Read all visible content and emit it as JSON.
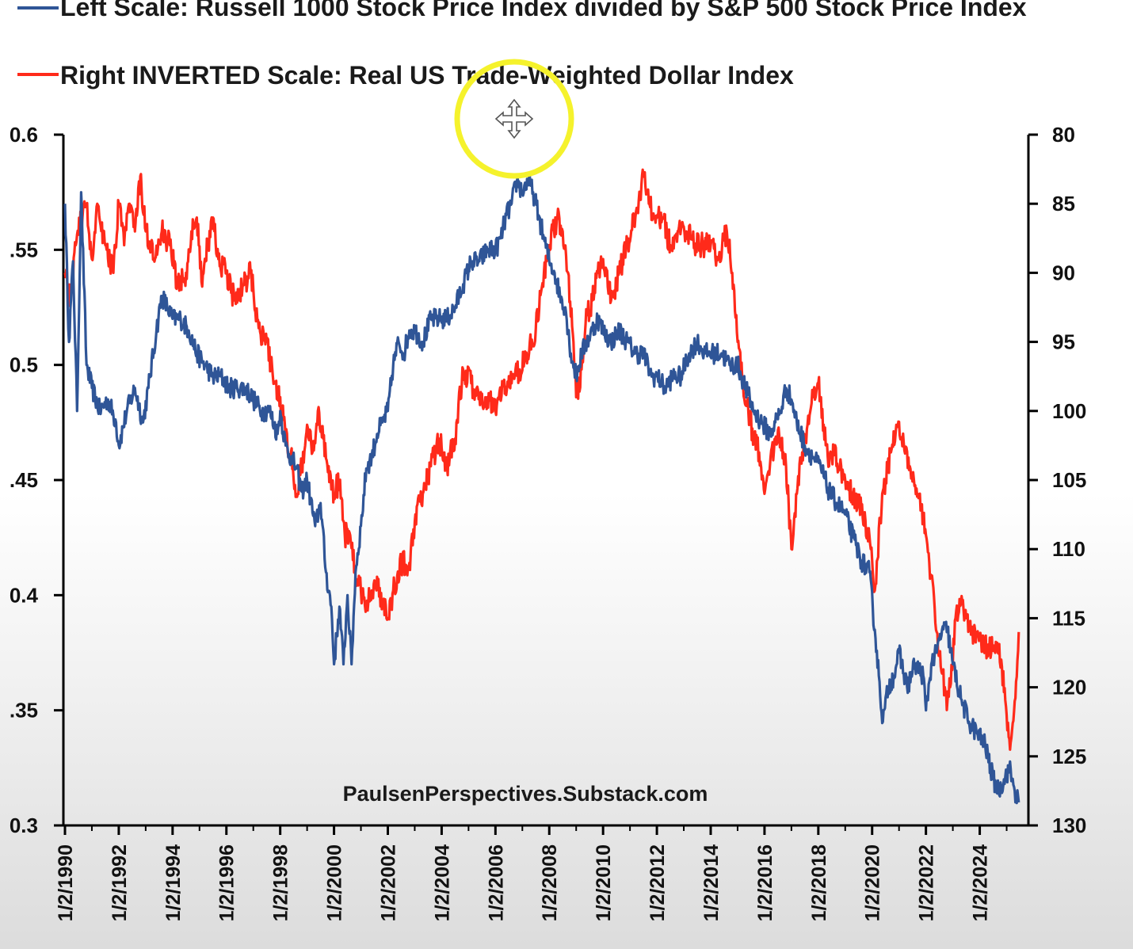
{
  "chart_data": {
    "type": "line",
    "watermark": "PaulsenPerspectives.Substack.com",
    "x_dates": [
      "1/2/1990",
      "1/2/1992",
      "1/2/1994",
      "1/2/1996",
      "1/2/1998",
      "1/2/2000",
      "1/2/2002",
      "1/2/2004",
      "1/2/2006",
      "1/2/2008",
      "1/2/2010",
      "1/2/2012",
      "1/2/2014",
      "1/2/2016",
      "1/2/2018",
      "1/2/2020",
      "1/2/2022",
      "1/2/2024"
    ],
    "left_axis": {
      "ticks": [
        0.6,
        0.55,
        0.5,
        0.45,
        0.4,
        0.35,
        0.3
      ],
      "labels": [
        "0.6",
        ".55",
        "0.5",
        ".45",
        "0.4",
        ".35",
        "0.3"
      ],
      "range": [
        0.3,
        0.6
      ]
    },
    "right_axis": {
      "inverted": true,
      "ticks": [
        80,
        85,
        90,
        95,
        100,
        105,
        110,
        115,
        120,
        125,
        130
      ],
      "range": [
        80,
        130
      ]
    },
    "series": [
      {
        "name": "Left Scale: Russell 1000 Stock Price Index divided by S&P 500 Stock Price Index",
        "color": "#2f5597",
        "axis": "left",
        "points": [
          [
            1990.0,
            0.57
          ],
          [
            1990.15,
            0.51
          ],
          [
            1990.3,
            0.545
          ],
          [
            1990.45,
            0.48
          ],
          [
            1990.6,
            0.575
          ],
          [
            1990.8,
            0.5
          ],
          [
            1991.0,
            0.49
          ],
          [
            1991.3,
            0.48
          ],
          [
            1991.6,
            0.485
          ],
          [
            1991.9,
            0.475
          ],
          [
            1992.0,
            0.465
          ],
          [
            1992.3,
            0.48
          ],
          [
            1992.6,
            0.49
          ],
          [
            1992.9,
            0.475
          ],
          [
            1993.1,
            0.49
          ],
          [
            1993.4,
            0.515
          ],
          [
            1993.6,
            0.53
          ],
          [
            1993.8,
            0.525
          ],
          [
            1994.0,
            0.52
          ],
          [
            1994.3,
            0.52
          ],
          [
            1994.6,
            0.515
          ],
          [
            1994.9,
            0.505
          ],
          [
            1995.2,
            0.5
          ],
          [
            1995.5,
            0.495
          ],
          [
            1995.8,
            0.495
          ],
          [
            1996.1,
            0.49
          ],
          [
            1996.4,
            0.49
          ],
          [
            1996.7,
            0.49
          ],
          [
            1997.0,
            0.485
          ],
          [
            1997.3,
            0.48
          ],
          [
            1997.6,
            0.48
          ],
          [
            1997.9,
            0.47
          ],
          [
            1998.0,
            0.48
          ],
          [
            1998.2,
            0.465
          ],
          [
            1998.4,
            0.46
          ],
          [
            1998.6,
            0.455
          ],
          [
            1998.8,
            0.445
          ],
          [
            1999.0,
            0.45
          ],
          [
            1999.3,
            0.43
          ],
          [
            1999.5,
            0.44
          ],
          [
            1999.7,
            0.41
          ],
          [
            1999.9,
            0.395
          ],
          [
            2000.0,
            0.37
          ],
          [
            2000.2,
            0.395
          ],
          [
            2000.35,
            0.37
          ],
          [
            2000.5,
            0.4
          ],
          [
            2000.65,
            0.37
          ],
          [
            2000.8,
            0.41
          ],
          [
            2001.0,
            0.43
          ],
          [
            2001.2,
            0.455
          ],
          [
            2001.4,
            0.46
          ],
          [
            2001.6,
            0.47
          ],
          [
            2001.8,
            0.475
          ],
          [
            2002.0,
            0.48
          ],
          [
            2002.2,
            0.5
          ],
          [
            2002.4,
            0.51
          ],
          [
            2002.6,
            0.505
          ],
          [
            2002.8,
            0.515
          ],
          [
            2003.0,
            0.515
          ],
          [
            2003.3,
            0.51
          ],
          [
            2003.6,
            0.52
          ],
          [
            2003.9,
            0.52
          ],
          [
            2004.2,
            0.52
          ],
          [
            2004.5,
            0.525
          ],
          [
            2004.8,
            0.535
          ],
          [
            2005.1,
            0.545
          ],
          [
            2005.4,
            0.545
          ],
          [
            2005.7,
            0.55
          ],
          [
            2006.0,
            0.55
          ],
          [
            2006.2,
            0.555
          ],
          [
            2006.4,
            0.565
          ],
          [
            2006.6,
            0.57
          ],
          [
            2006.8,
            0.58
          ],
          [
            2007.0,
            0.575
          ],
          [
            2007.2,
            0.58
          ],
          [
            2007.4,
            0.575
          ],
          [
            2007.6,
            0.565
          ],
          [
            2007.8,
            0.555
          ],
          [
            2008.0,
            0.545
          ],
          [
            2008.2,
            0.54
          ],
          [
            2008.4,
            0.53
          ],
          [
            2008.6,
            0.525
          ],
          [
            2008.8,
            0.505
          ],
          [
            2009.0,
            0.495
          ],
          [
            2009.2,
            0.505
          ],
          [
            2009.4,
            0.51
          ],
          [
            2009.6,
            0.515
          ],
          [
            2009.8,
            0.52
          ],
          [
            2010.0,
            0.515
          ],
          [
            2010.3,
            0.51
          ],
          [
            2010.6,
            0.515
          ],
          [
            2010.9,
            0.51
          ],
          [
            2011.2,
            0.505
          ],
          [
            2011.5,
            0.505
          ],
          [
            2011.8,
            0.495
          ],
          [
            2012.0,
            0.495
          ],
          [
            2012.3,
            0.49
          ],
          [
            2012.6,
            0.495
          ],
          [
            2012.9,
            0.495
          ],
          [
            2013.2,
            0.505
          ],
          [
            2013.5,
            0.51
          ],
          [
            2013.8,
            0.505
          ],
          [
            2014.1,
            0.505
          ],
          [
            2014.4,
            0.505
          ],
          [
            2014.7,
            0.5
          ],
          [
            2015.0,
            0.5
          ],
          [
            2015.3,
            0.49
          ],
          [
            2015.6,
            0.48
          ],
          [
            2015.9,
            0.475
          ],
          [
            2016.2,
            0.47
          ],
          [
            2016.4,
            0.475
          ],
          [
            2016.6,
            0.48
          ],
          [
            2016.8,
            0.49
          ],
          [
            2017.0,
            0.485
          ],
          [
            2017.2,
            0.475
          ],
          [
            2017.5,
            0.465
          ],
          [
            2017.8,
            0.46
          ],
          [
            2018.1,
            0.455
          ],
          [
            2018.4,
            0.445
          ],
          [
            2018.7,
            0.44
          ],
          [
            2019.0,
            0.435
          ],
          [
            2019.3,
            0.425
          ],
          [
            2019.6,
            0.415
          ],
          [
            2019.9,
            0.41
          ],
          [
            2020.1,
            0.385
          ],
          [
            2020.25,
            0.365
          ],
          [
            2020.4,
            0.345
          ],
          [
            2020.6,
            0.36
          ],
          [
            2020.8,
            0.365
          ],
          [
            2021.0,
            0.375
          ],
          [
            2021.3,
            0.36
          ],
          [
            2021.6,
            0.37
          ],
          [
            2021.9,
            0.365
          ],
          [
            2022.0,
            0.35
          ],
          [
            2022.2,
            0.37
          ],
          [
            2022.4,
            0.375
          ],
          [
            2022.6,
            0.385
          ],
          [
            2022.8,
            0.385
          ],
          [
            2023.0,
            0.37
          ],
          [
            2023.3,
            0.355
          ],
          [
            2023.6,
            0.345
          ],
          [
            2023.9,
            0.34
          ],
          [
            2024.2,
            0.335
          ],
          [
            2024.5,
            0.32
          ],
          [
            2024.7,
            0.315
          ],
          [
            2024.9,
            0.32
          ],
          [
            2025.1,
            0.325
          ],
          [
            2025.3,
            0.315
          ],
          [
            2025.45,
            0.31
          ]
        ]
      },
      {
        "name": "Right INVERTED Scale: Real US Trade-Weighted Dollar Index",
        "color": "#ff2a1a",
        "axis": "right",
        "points": [
          [
            1990.0,
            90
          ],
          [
            1990.2,
            92
          ],
          [
            1990.4,
            88
          ],
          [
            1990.6,
            86
          ],
          [
            1990.8,
            85
          ],
          [
            1991.0,
            89
          ],
          [
            1991.2,
            85
          ],
          [
            1991.5,
            88
          ],
          [
            1991.8,
            90
          ],
          [
            1992.0,
            85
          ],
          [
            1992.2,
            88
          ],
          [
            1992.4,
            85
          ],
          [
            1992.6,
            87
          ],
          [
            1992.8,
            83
          ],
          [
            1993.0,
            87
          ],
          [
            1993.3,
            89
          ],
          [
            1993.6,
            87
          ],
          [
            1993.9,
            88
          ],
          [
            1994.2,
            91
          ],
          [
            1994.5,
            90
          ],
          [
            1994.7,
            87
          ],
          [
            1994.9,
            86
          ],
          [
            1995.1,
            91
          ],
          [
            1995.3,
            88
          ],
          [
            1995.5,
            86
          ],
          [
            1995.7,
            89
          ],
          [
            1996.0,
            90
          ],
          [
            1996.3,
            92
          ],
          [
            1996.6,
            91
          ],
          [
            1996.9,
            90
          ],
          [
            1997.2,
            94
          ],
          [
            1997.5,
            95
          ],
          [
            1997.8,
            98
          ],
          [
            1998.0,
            99
          ],
          [
            1998.2,
            102
          ],
          [
            1998.4,
            103
          ],
          [
            1998.6,
            106
          ],
          [
            1998.8,
            104
          ],
          [
            1999.0,
            101
          ],
          [
            1999.2,
            103
          ],
          [
            1999.4,
            100
          ],
          [
            1999.6,
            102
          ],
          [
            1999.8,
            104
          ],
          [
            2000.0,
            106
          ],
          [
            2000.2,
            105
          ],
          [
            2000.4,
            109
          ],
          [
            2000.6,
            109
          ],
          [
            2000.8,
            112
          ],
          [
            2001.0,
            113
          ],
          [
            2001.2,
            114
          ],
          [
            2001.4,
            113
          ],
          [
            2001.6,
            112
          ],
          [
            2001.8,
            114
          ],
          [
            2002.0,
            115
          ],
          [
            2002.2,
            113
          ],
          [
            2002.5,
            111
          ],
          [
            2002.8,
            111
          ],
          [
            2003.0,
            108
          ],
          [
            2003.3,
            106
          ],
          [
            2003.6,
            104
          ],
          [
            2003.9,
            102
          ],
          [
            2004.2,
            104
          ],
          [
            2004.5,
            102
          ],
          [
            2004.8,
            97
          ],
          [
            2005.1,
            98
          ],
          [
            2005.4,
            99
          ],
          [
            2005.7,
            99
          ],
          [
            2006.0,
            100
          ],
          [
            2006.3,
            98
          ],
          [
            2006.6,
            98
          ],
          [
            2006.9,
            97
          ],
          [
            2007.2,
            96
          ],
          [
            2007.5,
            94
          ],
          [
            2007.8,
            90
          ],
          [
            2008.0,
            88
          ],
          [
            2008.3,
            86
          ],
          [
            2008.5,
            87
          ],
          [
            2008.7,
            90
          ],
          [
            2008.9,
            95
          ],
          [
            2009.0,
            99
          ],
          [
            2009.2,
            97
          ],
          [
            2009.4,
            93
          ],
          [
            2009.6,
            92
          ],
          [
            2009.8,
            90
          ],
          [
            2010.0,
            89
          ],
          [
            2010.3,
            92
          ],
          [
            2010.6,
            90
          ],
          [
            2010.9,
            88
          ],
          [
            2011.2,
            86
          ],
          [
            2011.5,
            83
          ],
          [
            2011.7,
            85
          ],
          [
            2011.9,
            86
          ],
          [
            2012.2,
            86
          ],
          [
            2012.5,
            88
          ],
          [
            2012.8,
            87
          ],
          [
            2013.1,
            87
          ],
          [
            2013.4,
            88
          ],
          [
            2013.7,
            88
          ],
          [
            2014.0,
            88
          ],
          [
            2014.3,
            89
          ],
          [
            2014.6,
            87
          ],
          [
            2014.8,
            90
          ],
          [
            2015.0,
            95
          ],
          [
            2015.2,
            98
          ],
          [
            2015.4,
            100
          ],
          [
            2015.6,
            102
          ],
          [
            2015.8,
            103
          ],
          [
            2016.0,
            106
          ],
          [
            2016.2,
            104
          ],
          [
            2016.4,
            102
          ],
          [
            2016.6,
            102
          ],
          [
            2016.8,
            104
          ],
          [
            2017.0,
            110
          ],
          [
            2017.2,
            106
          ],
          [
            2017.4,
            103
          ],
          [
            2017.6,
            101
          ],
          [
            2017.8,
            99
          ],
          [
            2018.0,
            98
          ],
          [
            2018.2,
            101
          ],
          [
            2018.4,
            104
          ],
          [
            2018.6,
            103
          ],
          [
            2018.8,
            104
          ],
          [
            2019.0,
            105
          ],
          [
            2019.3,
            106
          ],
          [
            2019.6,
            107
          ],
          [
            2019.9,
            109
          ],
          [
            2020.1,
            113
          ],
          [
            2020.3,
            108
          ],
          [
            2020.5,
            105
          ],
          [
            2020.7,
            103
          ],
          [
            2020.9,
            101
          ],
          [
            2021.1,
            102
          ],
          [
            2021.4,
            104
          ],
          [
            2021.7,
            106
          ],
          [
            2022.0,
            109
          ],
          [
            2022.2,
            112
          ],
          [
            2022.4,
            116
          ],
          [
            2022.6,
            119
          ],
          [
            2022.8,
            121
          ],
          [
            2022.9,
            120
          ],
          [
            2023.1,
            115
          ],
          [
            2023.3,
            114
          ],
          [
            2023.5,
            115
          ],
          [
            2023.7,
            116
          ],
          [
            2023.9,
            116
          ],
          [
            2024.2,
            117
          ],
          [
            2024.5,
            117
          ],
          [
            2024.8,
            118
          ],
          [
            2025.0,
            122
          ],
          [
            2025.15,
            124
          ],
          [
            2025.3,
            121
          ],
          [
            2025.45,
            116
          ]
        ]
      }
    ]
  }
}
